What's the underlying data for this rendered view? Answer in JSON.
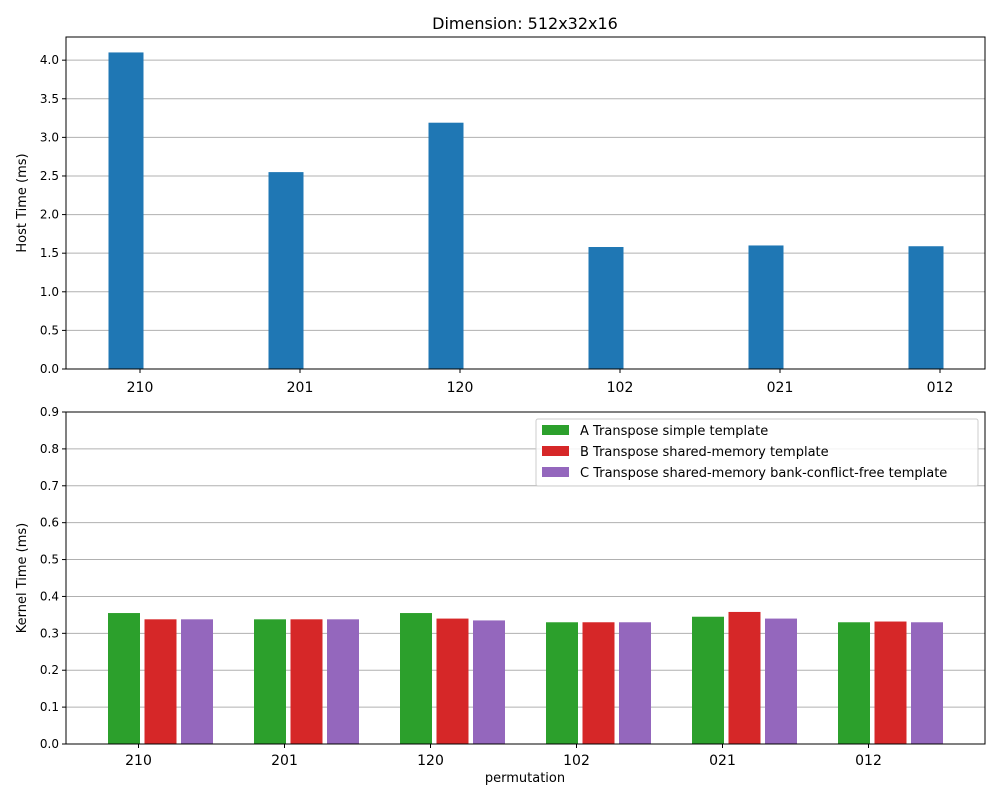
{
  "chart_data": [
    {
      "type": "bar",
      "title": "Dimension: 512x32x16",
      "xlabel": "",
      "ylabel": "Host Time (ms)",
      "categories": [
        "210",
        "201",
        "120",
        "102",
        "021",
        "012"
      ],
      "values": [
        4.1,
        2.55,
        3.19,
        1.58,
        1.6,
        1.59
      ],
      "ylim": [
        0,
        4.3
      ],
      "yticks": [
        "0.0",
        "0.5",
        "1.0",
        "1.5",
        "2.0",
        "2.5",
        "3.0",
        "3.5",
        "4.0"
      ],
      "grid": "y",
      "color": "#1f77b4"
    },
    {
      "type": "bar",
      "title": "",
      "xlabel": "permutation",
      "ylabel": "Kernel Time (ms)",
      "categories": [
        "210",
        "201",
        "120",
        "102",
        "021",
        "012"
      ],
      "ylim": [
        0,
        0.9
      ],
      "yticks": [
        "0.0",
        "0.1",
        "0.2",
        "0.3",
        "0.4",
        "0.5",
        "0.6",
        "0.7",
        "0.8",
        "0.9"
      ],
      "grid": "y",
      "legend_position": "top-right",
      "series": [
        {
          "name": "A Transpose simple template",
          "color": "#2ca02c",
          "values": [
            0.355,
            0.338,
            0.355,
            0.33,
            0.345,
            0.33
          ]
        },
        {
          "name": "B Transpose shared-memory template",
          "color": "#d62728",
          "values": [
            0.338,
            0.338,
            0.34,
            0.33,
            0.358,
            0.332
          ]
        },
        {
          "name": "C Transpose shared-memory bank-conflict-free template",
          "color": "#9467bd",
          "values": [
            0.338,
            0.338,
            0.335,
            0.33,
            0.34,
            0.33
          ]
        }
      ]
    }
  ]
}
